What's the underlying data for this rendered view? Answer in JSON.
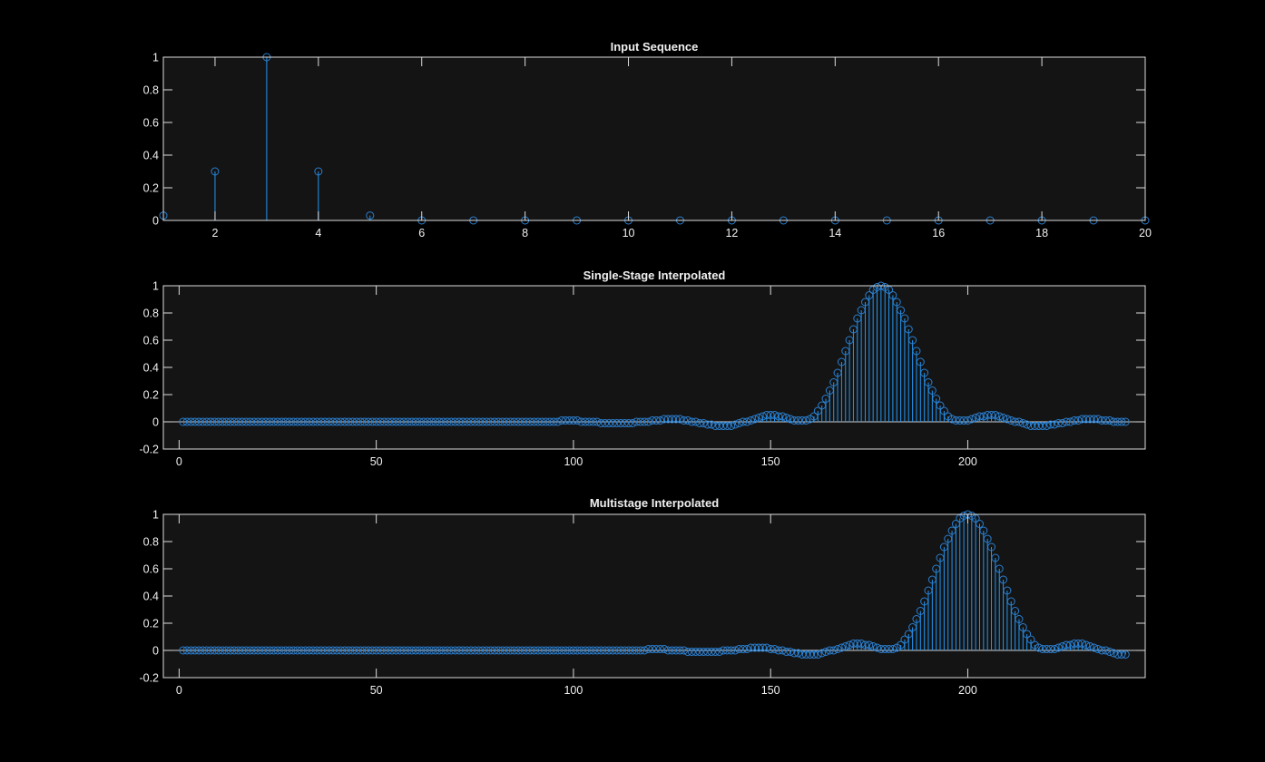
{
  "colors": {
    "figure_background": "#000000",
    "axes_background": "#141414",
    "axis_lines": "#dcdcdc",
    "stem": "#2196f3",
    "marker": "#2a7fd0"
  },
  "chart_data": [
    {
      "type": "stem",
      "title": "Input Sequence",
      "xlim": [
        1,
        20
      ],
      "ylim": [
        0,
        1
      ],
      "xticks": [
        2,
        4,
        6,
        8,
        10,
        12,
        14,
        16,
        18,
        20
      ],
      "yticks": [
        0,
        0.2,
        0.4,
        0.6,
        0.8,
        1
      ],
      "ytick_labels": [
        "0",
        "0.2",
        "0.4",
        "0.6",
        "0.8",
        "1"
      ],
      "grid": false,
      "x_start": 1,
      "values": [
        0.03,
        0.3,
        1,
        0.3,
        0.03,
        0,
        0,
        0,
        0,
        0,
        0,
        0,
        0,
        0,
        0,
        0,
        0,
        0,
        0,
        0
      ]
    },
    {
      "type": "stem",
      "title": "Single-Stage Interpolated",
      "xlim": [
        -4,
        245
      ],
      "ylim": [
        -0.2,
        1
      ],
      "xticks": [
        0,
        50,
        100,
        150,
        200
      ],
      "yticks": [
        -0.2,
        0,
        0.2,
        0.4,
        0.6,
        0.8,
        1
      ],
      "ytick_labels": [
        "-0.2",
        "0",
        "0.2",
        "0.4",
        "0.6",
        "0.8",
        "1"
      ],
      "grid": false,
      "x_start": 1,
      "values": [
        0,
        0,
        0,
        0,
        0,
        0,
        0,
        0,
        0,
        0,
        0,
        0,
        0,
        0,
        0,
        0,
        0,
        0,
        0,
        0,
        0,
        0,
        0,
        0,
        0,
        0,
        0,
        0,
        0,
        0,
        0,
        0,
        0,
        0,
        0,
        0,
        0,
        0,
        0,
        0,
        0,
        0,
        0,
        0,
        0,
        0,
        0,
        0,
        0,
        0,
        0,
        0,
        0,
        0,
        0,
        0,
        0,
        0,
        0,
        0,
        0,
        0,
        0,
        0,
        0,
        0,
        0,
        0,
        0,
        0,
        0,
        0,
        0,
        0,
        0,
        0,
        0,
        0,
        0,
        0,
        0,
        0,
        0,
        0,
        0,
        0,
        0,
        0,
        0,
        0,
        0,
        0,
        0,
        0,
        0,
        0,
        0.01,
        0.01,
        0.01,
        0.01,
        0.01,
        0,
        0,
        0,
        0,
        0,
        -0.01,
        -0.01,
        -0.01,
        -0.01,
        -0.01,
        -0.01,
        -0.01,
        -0.01,
        -0.01,
        0,
        0,
        0,
        0,
        0.01,
        0.01,
        0.01,
        0.02,
        0.02,
        0.02,
        0.02,
        0.02,
        0.01,
        0.01,
        0,
        0,
        -0.01,
        -0.01,
        -0.02,
        -0.02,
        -0.03,
        -0.03,
        -0.03,
        -0.03,
        -0.03,
        -0.02,
        -0.01,
        0,
        0,
        0.01,
        0.02,
        0.03,
        0.04,
        0.05,
        0.05,
        0.05,
        0.04,
        0.04,
        0.03,
        0.02,
        0.01,
        0.01,
        0.01,
        0.01,
        0.02,
        0.04,
        0.08,
        0.12,
        0.17,
        0.23,
        0.29,
        0.36,
        0.44,
        0.52,
        0.6,
        0.68,
        0.76,
        0.82,
        0.88,
        0.93,
        0.97,
        0.99,
        1,
        0.99,
        0.97,
        0.93,
        0.88,
        0.82,
        0.76,
        0.68,
        0.6,
        0.52,
        0.44,
        0.36,
        0.29,
        0.23,
        0.17,
        0.12,
        0.08,
        0.04,
        0.02,
        0.01,
        0.01,
        0.01,
        0.01,
        0.02,
        0.03,
        0.04,
        0.04,
        0.05,
        0.05,
        0.05,
        0.04,
        0.03,
        0.02,
        0.01,
        0,
        0,
        -0.01,
        -0.02,
        -0.03,
        -0.03,
        -0.03,
        -0.03,
        -0.03,
        -0.02,
        -0.02,
        -0.01,
        -0.01,
        0,
        0,
        0.01,
        0.01,
        0.02,
        0.02,
        0.02,
        0.02,
        0.02,
        0.01,
        0.01,
        0.01,
        0,
        0,
        0,
        0
      ]
    },
    {
      "type": "stem",
      "title": "Multistage Interpolated",
      "xlim": [
        -4,
        245
      ],
      "ylim": [
        -0.2,
        1
      ],
      "xticks": [
        0,
        50,
        100,
        150,
        200
      ],
      "yticks": [
        -0.2,
        0,
        0.2,
        0.4,
        0.6,
        0.8,
        1
      ],
      "ytick_labels": [
        "-0.2",
        "0",
        "0.2",
        "0.4",
        "0.6",
        "0.8",
        "1"
      ],
      "grid": false,
      "x_start": 1,
      "values": [
        0,
        0,
        0,
        0,
        0,
        0,
        0,
        0,
        0,
        0,
        0,
        0,
        0,
        0,
        0,
        0,
        0,
        0,
        0,
        0,
        0,
        0,
        0,
        0,
        0,
        0,
        0,
        0,
        0,
        0,
        0,
        0,
        0,
        0,
        0,
        0,
        0,
        0,
        0,
        0,
        0,
        0,
        0,
        0,
        0,
        0,
        0,
        0,
        0,
        0,
        0,
        0,
        0,
        0,
        0,
        0,
        0,
        0,
        0,
        0,
        0,
        0,
        0,
        0,
        0,
        0,
        0,
        0,
        0,
        0,
        0,
        0,
        0,
        0,
        0,
        0,
        0,
        0,
        0,
        0,
        0,
        0,
        0,
        0,
        0,
        0,
        0,
        0,
        0,
        0,
        0,
        0,
        0,
        0,
        0,
        0,
        0,
        0,
        0,
        0,
        0,
        0,
        0,
        0,
        0,
        0,
        0,
        0,
        0,
        0,
        0,
        0,
        0,
        0,
        0,
        0,
        0,
        0,
        0.01,
        0.01,
        0.01,
        0.01,
        0.01,
        0,
        0,
        0,
        0,
        0,
        -0.01,
        -0.01,
        -0.01,
        -0.01,
        -0.01,
        -0.01,
        -0.01,
        -0.01,
        -0.01,
        0,
        0,
        0,
        0,
        0.01,
        0.01,
        0.01,
        0.02,
        0.02,
        0.02,
        0.02,
        0.02,
        0.01,
        0.01,
        0,
        0,
        -0.01,
        -0.01,
        -0.02,
        -0.02,
        -0.03,
        -0.03,
        -0.03,
        -0.03,
        -0.03,
        -0.02,
        -0.01,
        0,
        0,
        0.01,
        0.02,
        0.03,
        0.04,
        0.05,
        0.05,
        0.05,
        0.04,
        0.04,
        0.03,
        0.02,
        0.01,
        0.01,
        0.01,
        0.01,
        0.02,
        0.04,
        0.08,
        0.12,
        0.17,
        0.23,
        0.29,
        0.36,
        0.44,
        0.52,
        0.6,
        0.68,
        0.76,
        0.82,
        0.88,
        0.93,
        0.97,
        0.99,
        1,
        0.99,
        0.97,
        0.93,
        0.88,
        0.82,
        0.76,
        0.68,
        0.6,
        0.52,
        0.44,
        0.36,
        0.29,
        0.23,
        0.17,
        0.12,
        0.08,
        0.04,
        0.02,
        0.01,
        0.01,
        0.01,
        0.01,
        0.02,
        0.03,
        0.04,
        0.04,
        0.05,
        0.05,
        0.05,
        0.04,
        0.03,
        0.02,
        0.01,
        0,
        0,
        -0.01,
        -0.02,
        -0.03,
        -0.03,
        -0.03
      ]
    }
  ]
}
